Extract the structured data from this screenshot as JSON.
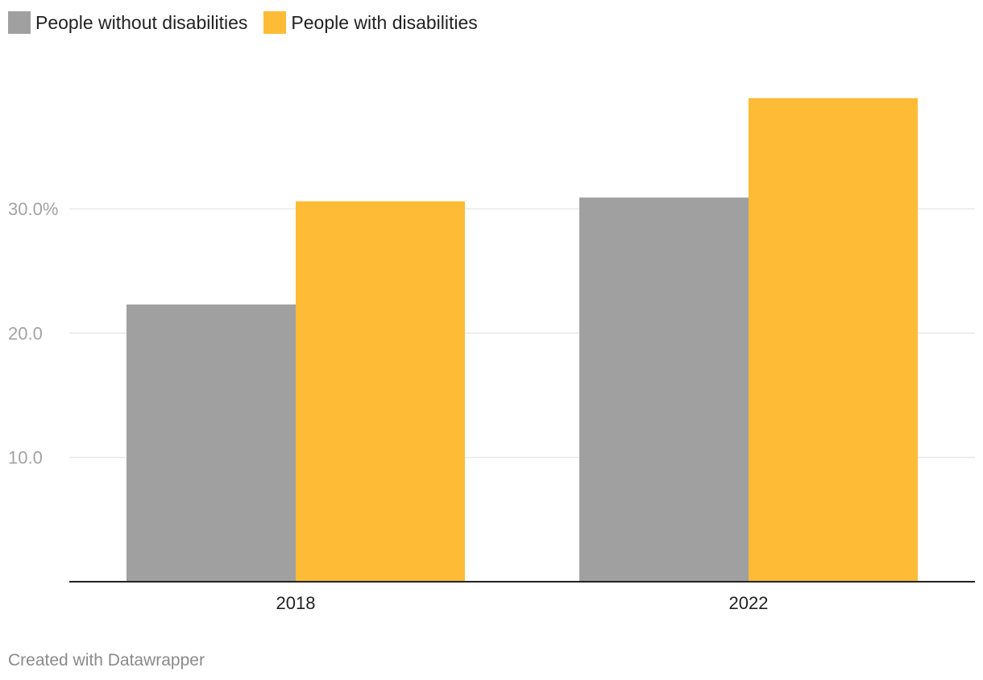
{
  "chart_data": {
    "type": "bar",
    "categories": [
      "2018",
      "2022"
    ],
    "series": [
      {
        "name": "People without disabilities",
        "color": "#a0a0a0",
        "values": [
          22.3,
          30.9
        ]
      },
      {
        "name": "People with disabilities",
        "color": "#febb36",
        "values": [
          30.6,
          38.9
        ]
      }
    ],
    "yticks": [
      {
        "value": 10,
        "label": "10.0"
      },
      {
        "value": 20,
        "label": "20.0"
      },
      {
        "value": 30,
        "label": "30.0%"
      }
    ],
    "ylim": [
      0,
      40
    ],
    "grid": true,
    "legend": "top-left",
    "title": "",
    "xlabel": "",
    "ylabel": ""
  },
  "footer": {
    "credit": "Created with Datawrapper"
  }
}
